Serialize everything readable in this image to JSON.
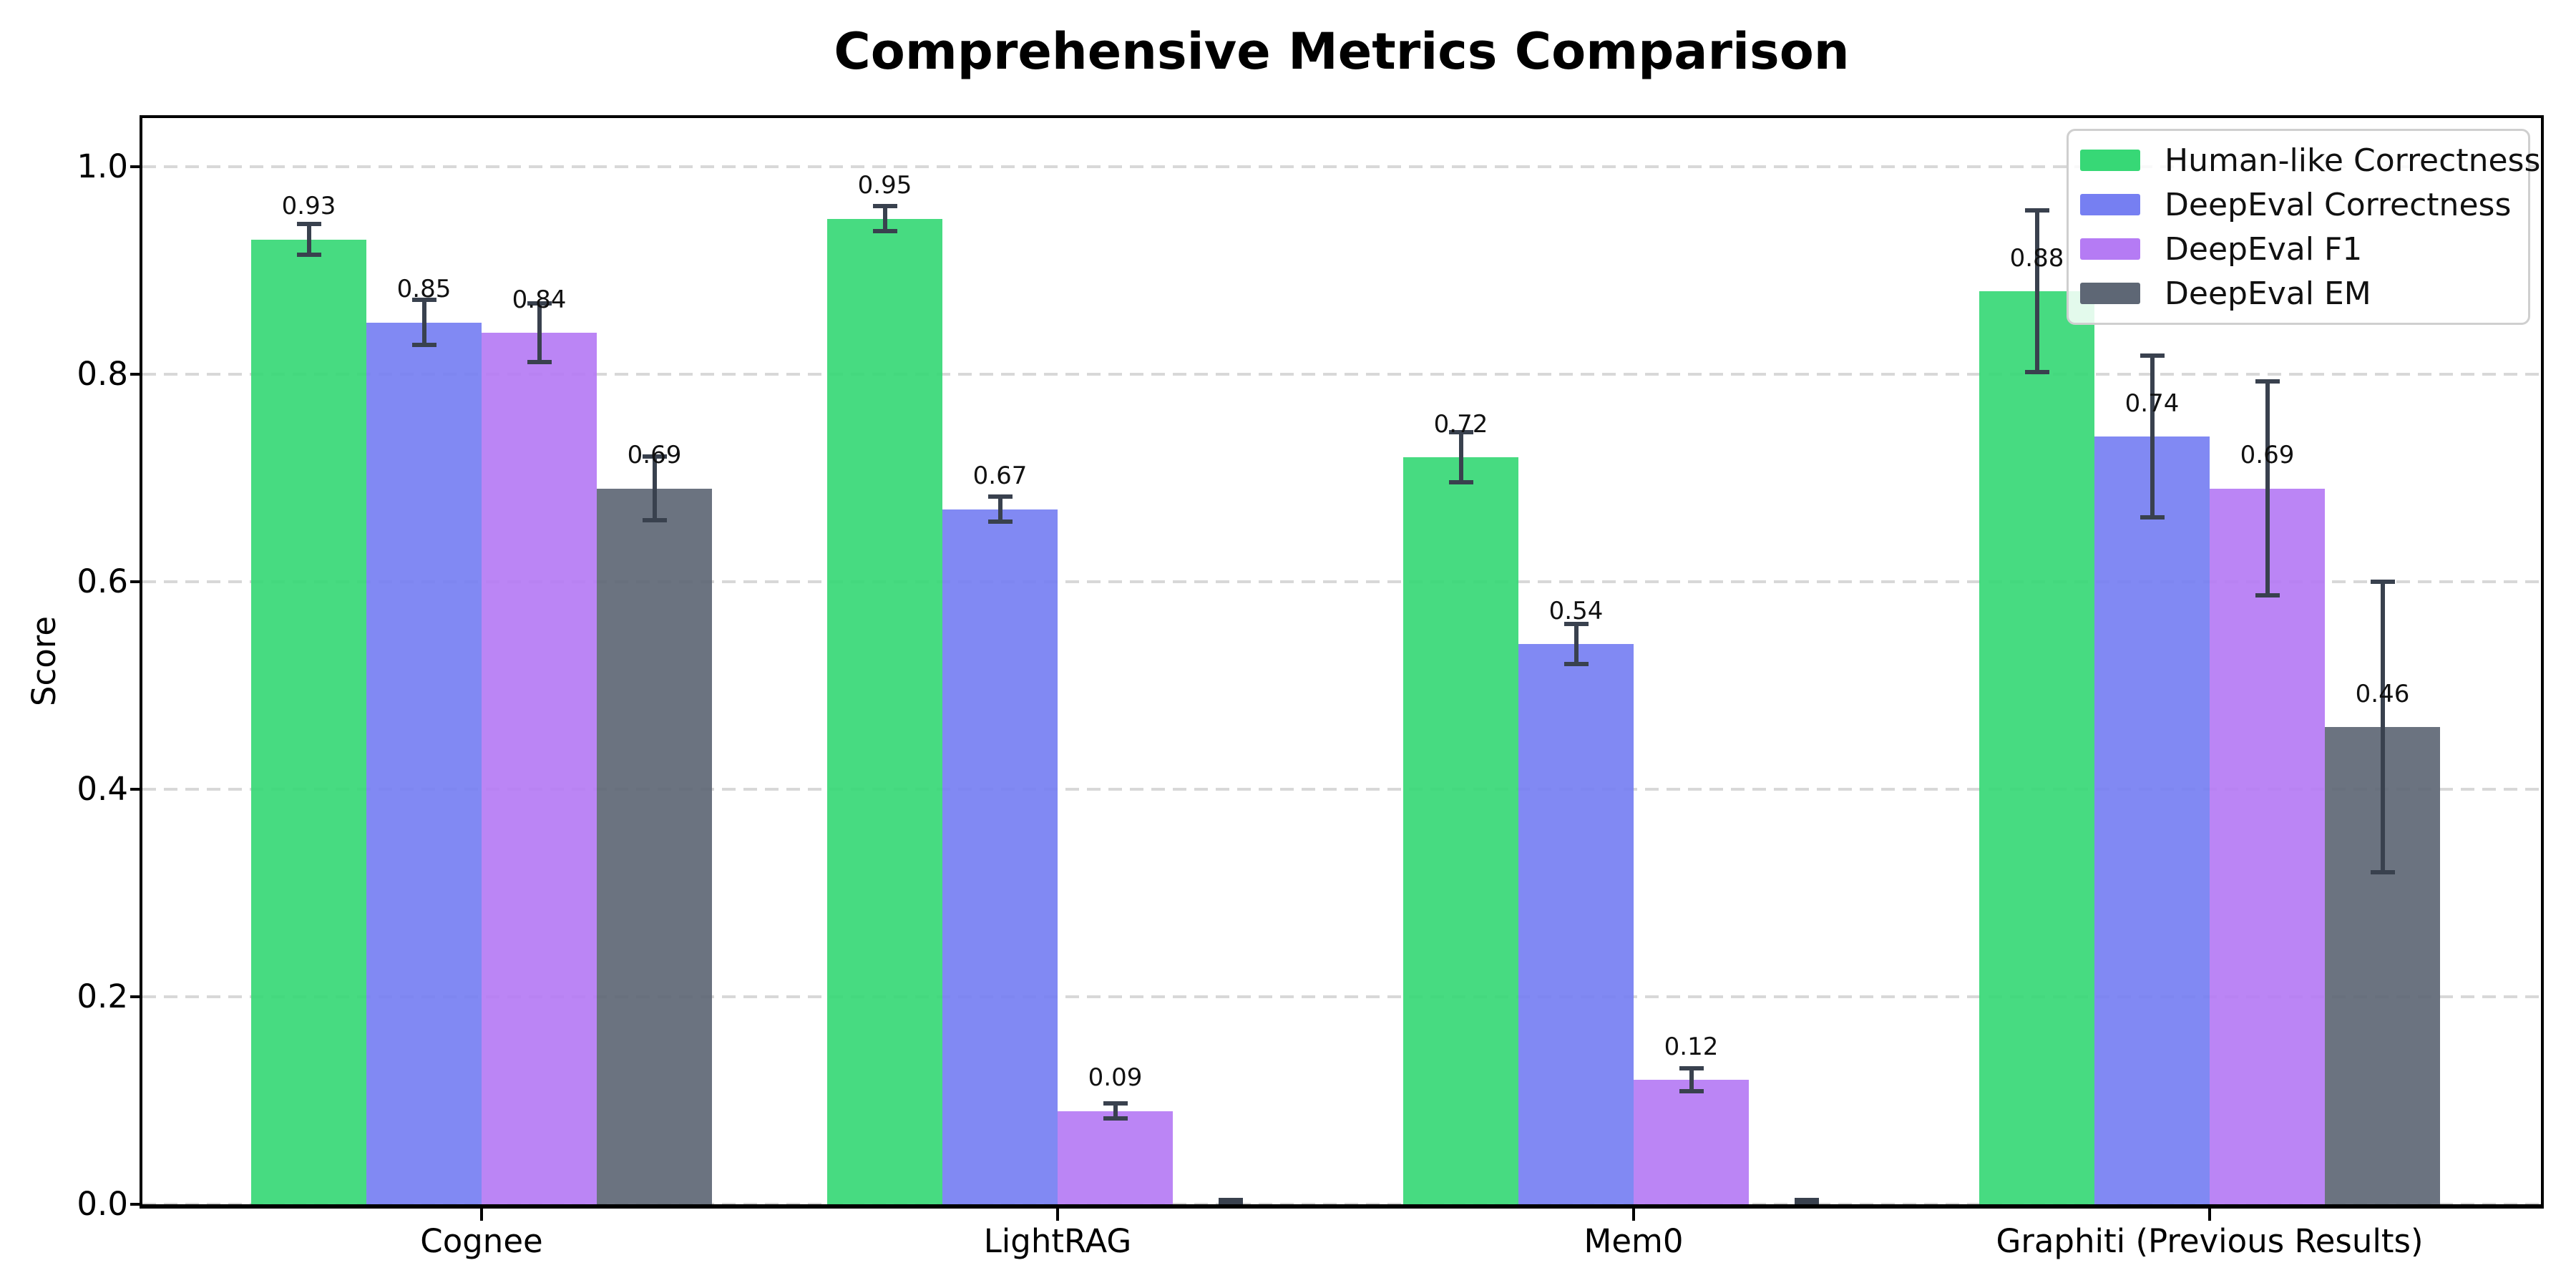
{
  "figure": {
    "background": "#ffffff"
  },
  "chart_data": {
    "type": "bar",
    "title": "Comprehensive Metrics Comparison",
    "ylabel": "Score",
    "xlabel": "",
    "categories": [
      "Cognee",
      "LightRAG",
      "Mem0",
      "Graphiti (Previous Results)"
    ],
    "series": [
      {
        "name": "Human-like Correctness",
        "color": "#37d876",
        "values": [
          0.93,
          0.95,
          0.72,
          0.88
        ],
        "errors": [
          0.015,
          0.012,
          0.024,
          0.078
        ],
        "labels": [
          "0.93",
          "0.95",
          "0.72",
          "0.88"
        ]
      },
      {
        "name": "DeepEval Correctness",
        "color": "#767ff2",
        "values": [
          0.85,
          0.67,
          0.54,
          0.74
        ],
        "errors": [
          0.022,
          0.012,
          0.019,
          0.078
        ],
        "labels": [
          "0.85",
          "0.67",
          "0.54",
          "0.74"
        ]
      },
      {
        "name": "DeepEval F1",
        "color": "#b57bf4",
        "values": [
          0.84,
          0.09,
          0.12,
          0.69
        ],
        "errors": [
          0.028,
          0.007,
          0.011,
          0.103
        ],
        "labels": [
          "0.84",
          "0.09",
          "0.12",
          "0.69"
        ]
      },
      {
        "name": "DeepEval EM",
        "color": "#5e6775",
        "values": [
          0.69,
          0.0,
          0.0,
          0.46
        ],
        "errors": [
          0.031,
          0.004,
          0.004,
          0.14
        ],
        "labels": [
          "0.69",
          "",
          "",
          "0.46"
        ]
      }
    ],
    "yticks": [
      "0.0",
      "0.2",
      "0.4",
      "0.6",
      "0.8",
      "1.0"
    ],
    "ylim": [
      0.0,
      1.047
    ],
    "grid": {
      "axis": "y",
      "style": "dashed",
      "color": "#d8d8d8"
    },
    "legend_position": "upper right",
    "error_bar_color": "#39414e",
    "axis_color": "#000000",
    "bar_label_color": "#111111"
  }
}
